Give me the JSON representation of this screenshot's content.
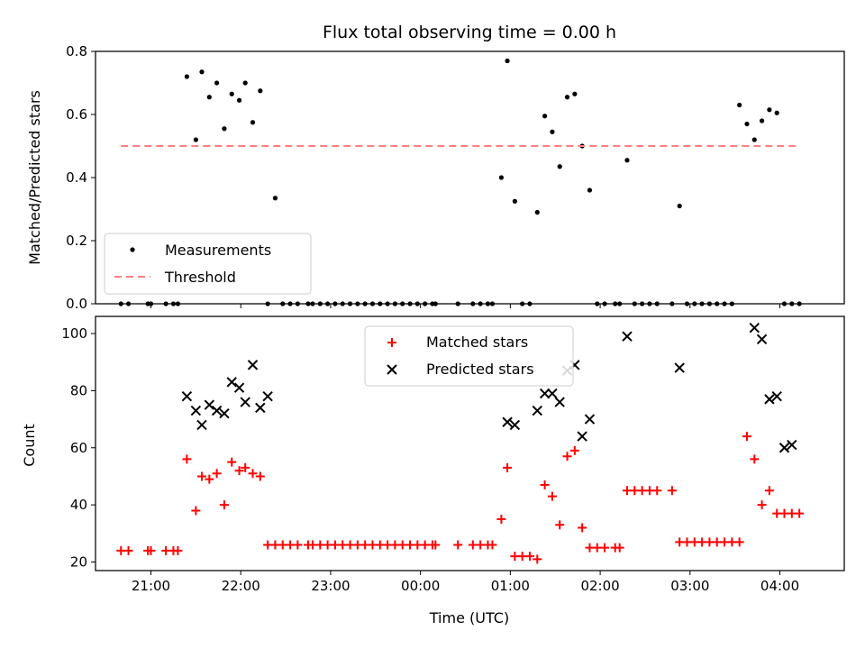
{
  "chart_data": {
    "title": "Flux total observing time = 0.00 h",
    "xlabel": "Time (UTC)",
    "x_type": "time",
    "x_ticks": [
      "21:00",
      "22:00",
      "23:00",
      "00:00",
      "01:00",
      "02:00",
      "03:00",
      "04:00"
    ],
    "colors": {
      "measurement": "#000000",
      "threshold": "#ff7f7f",
      "matched": "#ff0000",
      "predicted": "#000000"
    },
    "panels": [
      {
        "id": "ratio",
        "type": "scatter",
        "ylabel": "Matched/Predicted stars",
        "ylim": [
          0,
          0.8
        ],
        "yticks": [
          "0.0",
          "0.2",
          "0.4",
          "0.6",
          "0.8"
        ],
        "legend_position": "lower-left",
        "series": [
          {
            "name": "Measurements",
            "kind": "scatter",
            "x": [
              "20:40",
              "20:45",
              "20:58",
              "21:00",
              "21:10",
              "21:15",
              "21:18",
              "21:24",
              "21:30",
              "21:34",
              "21:39",
              "21:44",
              "21:49",
              "21:54",
              "21:59",
              "22:03",
              "22:08",
              "22:13",
              "22:18",
              "22:23",
              "22:28",
              "22:33",
              "22:38",
              "22:45",
              "22:48",
              "22:53",
              "22:58",
              "23:03",
              "23:08",
              "23:13",
              "23:18",
              "23:23",
              "23:28",
              "23:33",
              "23:38",
              "23:43",
              "23:48",
              "23:53",
              "23:58",
              "00:03",
              "00:08",
              "00:10",
              "00:25",
              "00:35",
              "00:40",
              "00:45",
              "00:48",
              "00:54",
              "00:58",
              "01:03",
              "01:08",
              "01:13",
              "01:18",
              "01:23",
              "01:28",
              "01:33",
              "01:38",
              "01:43",
              "01:48",
              "01:53",
              "01:58",
              "02:03",
              "02:10",
              "02:13",
              "02:18",
              "02:23",
              "02:28",
              "02:33",
              "02:38",
              "02:48",
              "02:53",
              "02:58",
              "03:03",
              "03:08",
              "03:13",
              "03:18",
              "03:23",
              "03:28",
              "03:33",
              "03:38",
              "03:43",
              "03:48",
              "03:53",
              "03:58",
              "04:03",
              "04:08",
              "04:13"
            ],
            "y": [
              0,
              0,
              0,
              0,
              0,
              0,
              0,
              0.72,
              0.52,
              0.735,
              0.655,
              0.7,
              0.555,
              0.665,
              0.645,
              0.7,
              0.575,
              0.675,
              0,
              0.335,
              0,
              0,
              0,
              0,
              0,
              0,
              0,
              0,
              0,
              0,
              0,
              0,
              0,
              0,
              0,
              0,
              0,
              0,
              0,
              0,
              0,
              0,
              0,
              0,
              0,
              0,
              0,
              0.4,
              0.77,
              0.325,
              0,
              0,
              0.29,
              0.595,
              0.545,
              0.435,
              0.655,
              0.665,
              0.5,
              0.36,
              0,
              0,
              0,
              0,
              0.455,
              0,
              0,
              0,
              0,
              0,
              0.31,
              0,
              0,
              0,
              0,
              0,
              0,
              0,
              0.63,
              0.57,
              0.52,
              0.58,
              0.615,
              0.605,
              0,
              0,
              0
            ]
          },
          {
            "name": "Threshold",
            "kind": "line",
            "style": "dashed",
            "x": [
              "20:40",
              "04:13"
            ],
            "y": [
              0.5,
              0.5
            ]
          }
        ]
      },
      {
        "id": "counts",
        "type": "scatter",
        "ylabel": "Count",
        "ylim": [
          17,
          106
        ],
        "yticks": [
          "20",
          "40",
          "60",
          "80",
          "100"
        ],
        "legend_position": "upper-center",
        "series": [
          {
            "name": "Matched stars",
            "marker": "+",
            "x": [
              "20:40",
              "20:45",
              "20:58",
              "21:00",
              "21:10",
              "21:15",
              "21:18",
              "21:24",
              "21:30",
              "21:34",
              "21:39",
              "21:44",
              "21:49",
              "21:54",
              "21:59",
              "22:03",
              "22:08",
              "22:13",
              "22:18",
              "22:23",
              "22:28",
              "22:33",
              "22:38",
              "22:45",
              "22:48",
              "22:53",
              "22:58",
              "23:03",
              "23:08",
              "23:13",
              "23:18",
              "23:23",
              "23:28",
              "23:33",
              "23:38",
              "23:43",
              "23:48",
              "23:53",
              "23:58",
              "00:03",
              "00:08",
              "00:10",
              "00:25",
              "00:35",
              "00:40",
              "00:45",
              "00:48",
              "00:54",
              "00:58",
              "01:03",
              "01:08",
              "01:13",
              "01:18",
              "01:23",
              "01:28",
              "01:33",
              "01:38",
              "01:43",
              "01:48",
              "01:53",
              "01:58",
              "02:03",
              "02:10",
              "02:13",
              "02:18",
              "02:23",
              "02:28",
              "02:33",
              "02:38",
              "02:48",
              "02:53",
              "02:58",
              "03:03",
              "03:08",
              "03:13",
              "03:18",
              "03:23",
              "03:28",
              "03:33",
              "03:38",
              "03:43",
              "03:48",
              "03:53",
              "03:58",
              "04:03",
              "04:08",
              "04:13"
            ],
            "y": [
              24,
              24,
              24,
              24,
              24,
              24,
              24,
              56,
              38,
              50,
              49,
              51,
              40,
              55,
              52,
              53,
              51,
              50,
              26,
              26,
              26,
              26,
              26,
              26,
              26,
              26,
              26,
              26,
              26,
              26,
              26,
              26,
              26,
              26,
              26,
              26,
              26,
              26,
              26,
              26,
              26,
              26,
              26,
              26,
              26,
              26,
              26,
              35,
              53,
              22,
              22,
              22,
              21,
              47,
              43,
              33,
              57,
              59,
              32,
              25,
              25,
              25,
              25,
              25,
              45,
              45,
              45,
              45,
              45,
              45,
              27,
              27,
              27,
              27,
              27,
              27,
              27,
              27,
              27,
              64,
              56,
              40,
              45,
              37,
              37,
              37,
              37
            ]
          },
          {
            "name": "Predicted stars",
            "marker": "x",
            "x": [
              "21:24",
              "21:30",
              "21:34",
              "21:39",
              "21:44",
              "21:49",
              "21:54",
              "21:59",
              "22:03",
              "22:08",
              "22:13",
              "22:18",
              "00:58",
              "01:03",
              "01:18",
              "01:23",
              "01:28",
              "01:33",
              "01:38",
              "01:43",
              "01:48",
              "01:53",
              "02:18",
              "02:53",
              "03:43",
              "03:48",
              "03:53",
              "03:58",
              "04:03",
              "04:08"
            ],
            "y": [
              78,
              73,
              68,
              75,
              73,
              72,
              83,
              81,
              76,
              89,
              74,
              78,
              69,
              68,
              73,
              79,
              79,
              76,
              87,
              89,
              64,
              70,
              99,
              88,
              102,
              98,
              77,
              78,
              60,
              61
            ]
          }
        ]
      }
    ]
  }
}
